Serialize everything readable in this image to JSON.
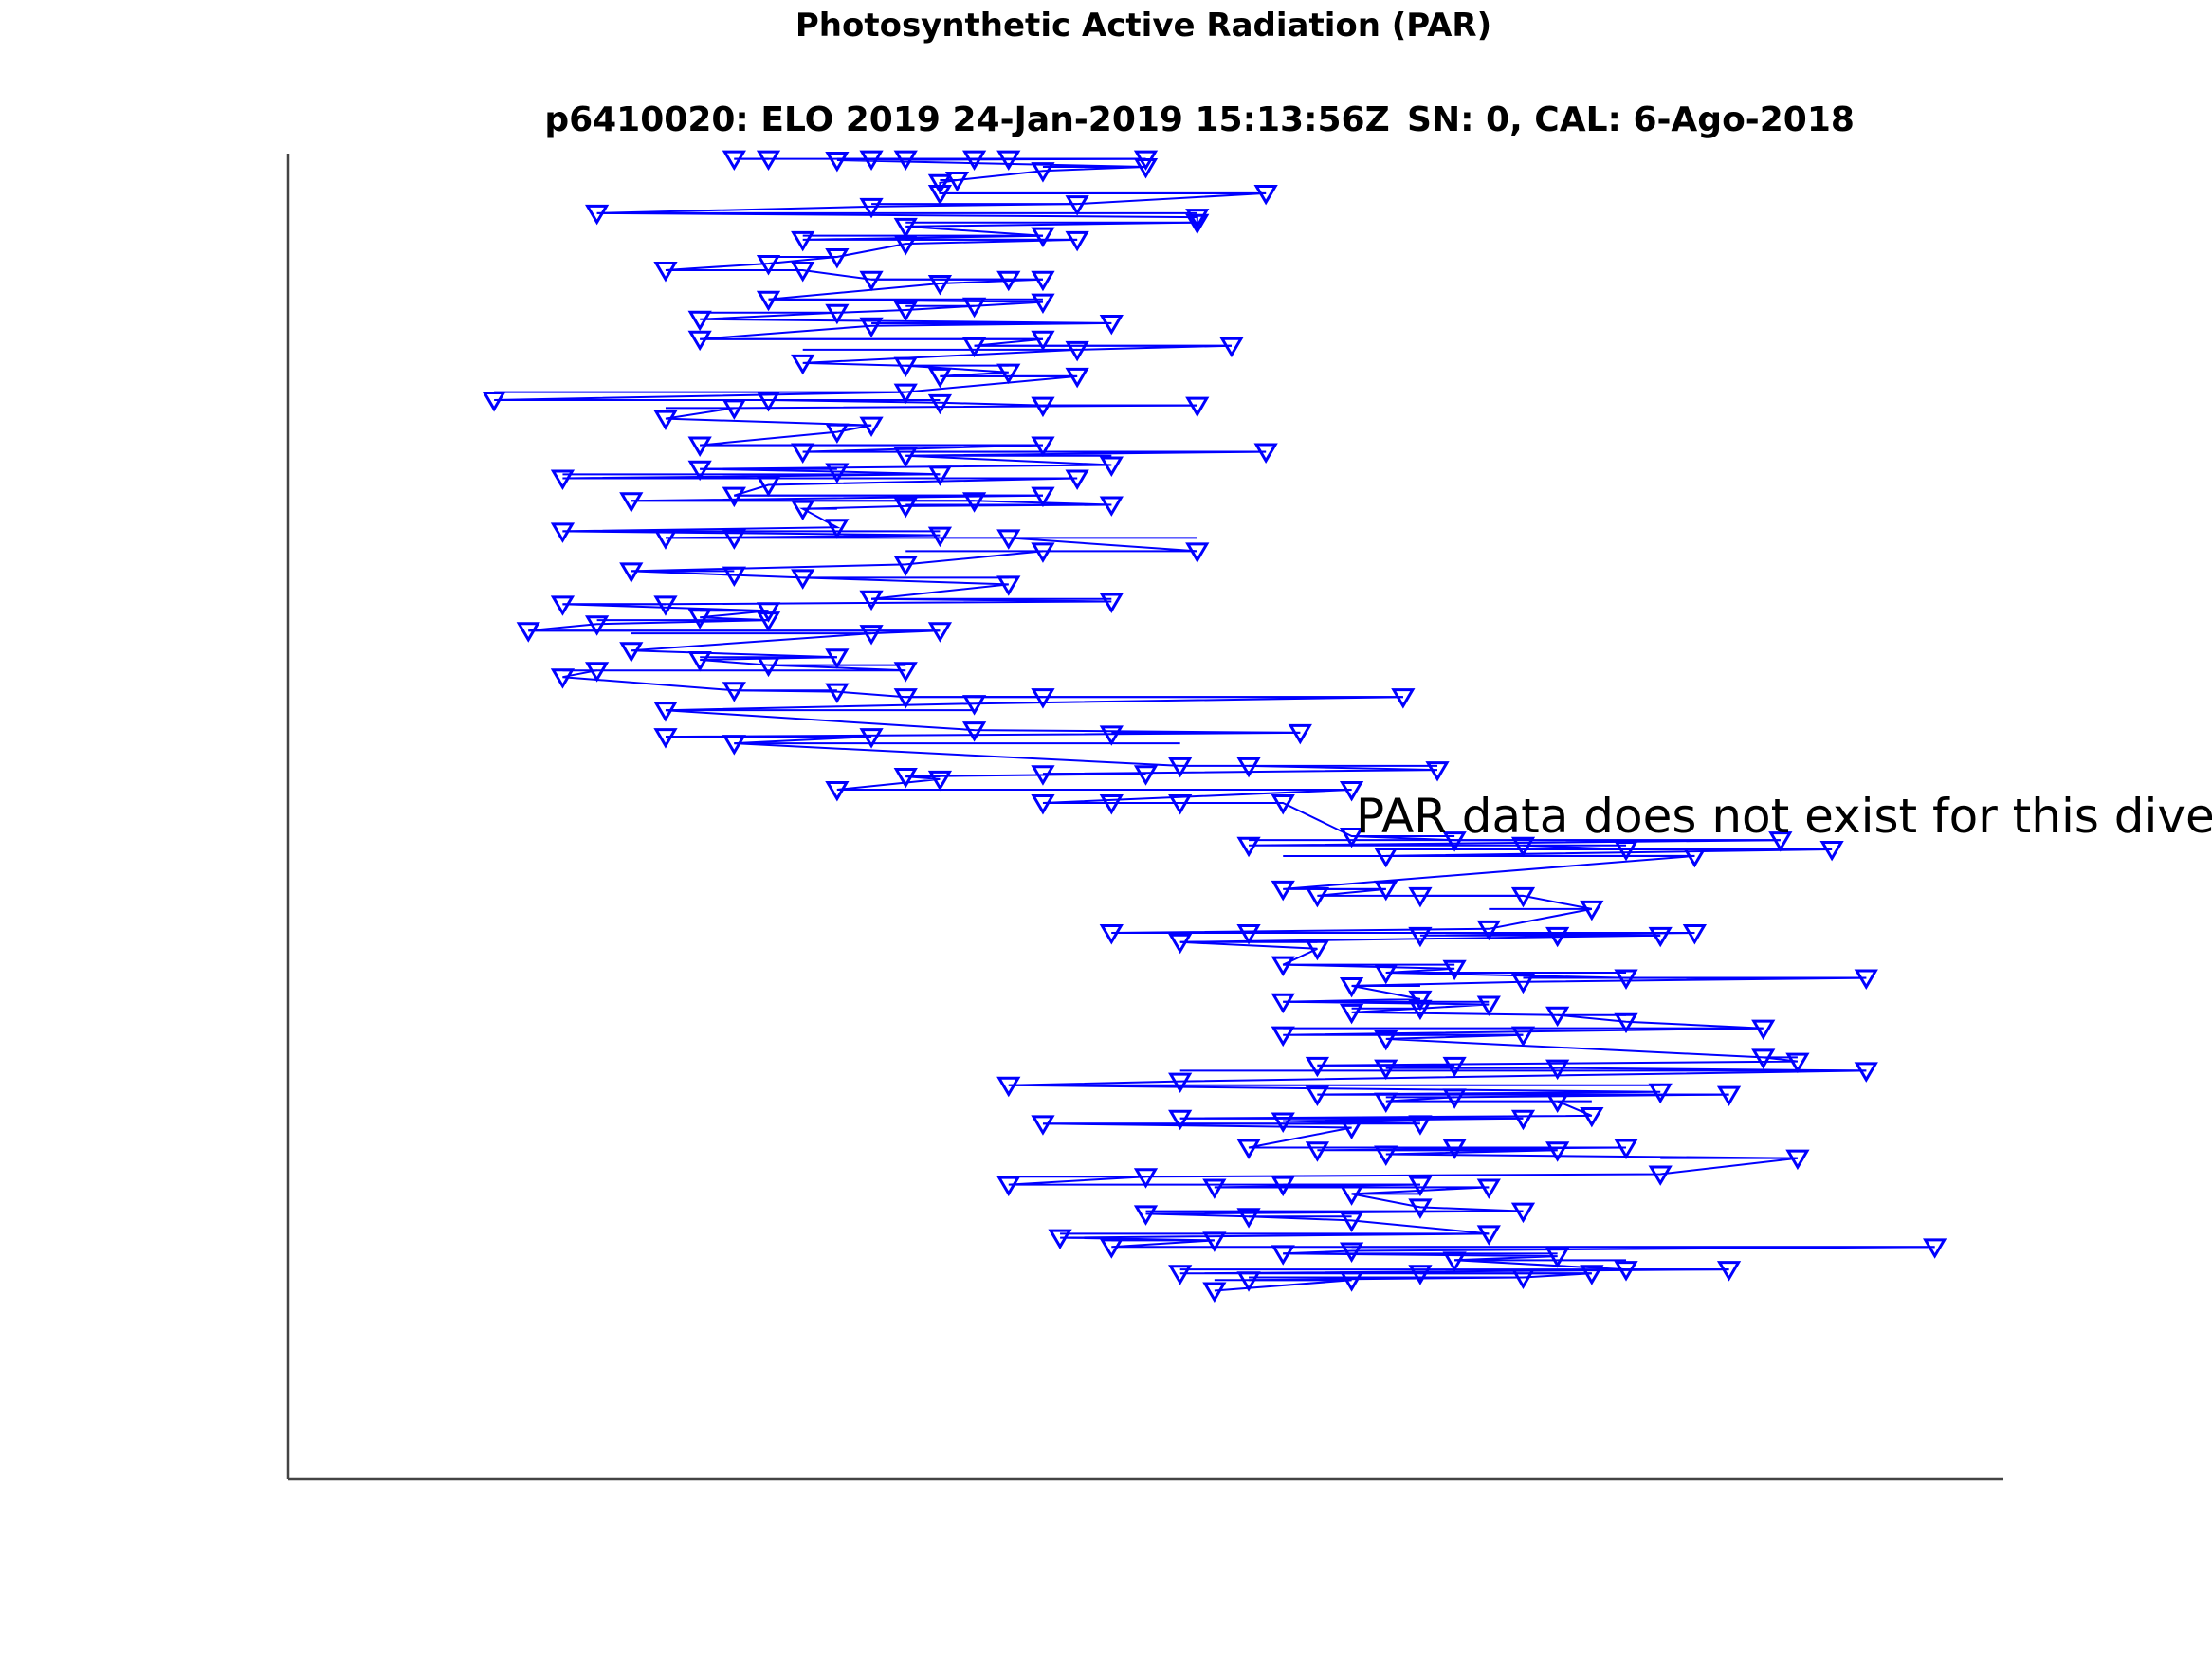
{
  "chart_data": {
    "type": "scatter",
    "title": "Photosynthetic Active Radiation (PAR)",
    "subtitle_left": "p6410020: ELO 2019 24-Jan-2019 15:13:56Z",
    "subtitle_right": "SN: 0, CAL: 6-Ago-2018",
    "annotation": "PAR data does not exist for this dive",
    "xlabel": "",
    "ylabel": "",
    "x_axis_ticks_shown": false,
    "y_axis_ticks_shown": false,
    "xlim": [
      0,
      1
    ],
    "ylim": [
      1,
      0
    ],
    "grid": false,
    "marker": "down-triangle-open",
    "series": [
      {
        "color": "#0000ff",
        "note_points": "x is horizontal fraction of plot width, y is depth fraction of plot height (0 = top)",
        "upper_points": [
          [
            0.26,
            0.004
          ],
          [
            0.28,
            0.004
          ],
          [
            0.32,
            0.005
          ],
          [
            0.34,
            0.004
          ],
          [
            0.36,
            0.004
          ],
          [
            0.4,
            0.004
          ],
          [
            0.42,
            0.004
          ],
          [
            0.5,
            0.004
          ],
          [
            0.5,
            0.01
          ],
          [
            0.44,
            0.013
          ],
          [
            0.38,
            0.022
          ],
          [
            0.39,
            0.02
          ],
          [
            0.38,
            0.03
          ],
          [
            0.57,
            0.03
          ],
          [
            0.18,
            0.045
          ],
          [
            0.34,
            0.04
          ],
          [
            0.46,
            0.038
          ],
          [
            0.53,
            0.048
          ],
          [
            0.53,
            0.052
          ],
          [
            0.36,
            0.055
          ],
          [
            0.3,
            0.065
          ],
          [
            0.36,
            0.068
          ],
          [
            0.44,
            0.062
          ],
          [
            0.46,
            0.065
          ],
          [
            0.22,
            0.088
          ],
          [
            0.28,
            0.083
          ],
          [
            0.32,
            0.078
          ],
          [
            0.3,
            0.088
          ],
          [
            0.34,
            0.095
          ],
          [
            0.38,
            0.098
          ],
          [
            0.42,
            0.095
          ],
          [
            0.44,
            0.095
          ],
          [
            0.28,
            0.11
          ],
          [
            0.32,
            0.12
          ],
          [
            0.36,
            0.118
          ],
          [
            0.4,
            0.115
          ],
          [
            0.44,
            0.112
          ],
          [
            0.24,
            0.125
          ],
          [
            0.34,
            0.13
          ],
          [
            0.48,
            0.128
          ],
          [
            0.24,
            0.14
          ],
          [
            0.4,
            0.145
          ],
          [
            0.44,
            0.14
          ],
          [
            0.55,
            0.145
          ],
          [
            0.46,
            0.148
          ],
          [
            0.3,
            0.158
          ],
          [
            0.36,
            0.16
          ],
          [
            0.42,
            0.165
          ],
          [
            0.38,
            0.168
          ],
          [
            0.46,
            0.168
          ],
          [
            0.12,
            0.186
          ],
          [
            0.26,
            0.192
          ],
          [
            0.28,
            0.186
          ],
          [
            0.36,
            0.18
          ],
          [
            0.38,
            0.188
          ],
          [
            0.44,
            0.19
          ],
          [
            0.53,
            0.19
          ],
          [
            0.22,
            0.2
          ],
          [
            0.32,
            0.21
          ],
          [
            0.34,
            0.205
          ],
          [
            0.24,
            0.22
          ],
          [
            0.3,
            0.225
          ],
          [
            0.36,
            0.228
          ],
          [
            0.44,
            0.22
          ],
          [
            0.48,
            0.235
          ],
          [
            0.57,
            0.225
          ],
          [
            0.16,
            0.245
          ],
          [
            0.24,
            0.238
          ],
          [
            0.28,
            0.25
          ],
          [
            0.32,
            0.24
          ],
          [
            0.38,
            0.242
          ],
          [
            0.46,
            0.245
          ],
          [
            0.2,
            0.262
          ],
          [
            0.26,
            0.258
          ],
          [
            0.3,
            0.268
          ],
          [
            0.36,
            0.266
          ],
          [
            0.4,
            0.262
          ],
          [
            0.44,
            0.258
          ],
          [
            0.48,
            0.265
          ],
          [
            0.16,
            0.285
          ],
          [
            0.22,
            0.29
          ],
          [
            0.26,
            0.29
          ],
          [
            0.32,
            0.282
          ],
          [
            0.38,
            0.288
          ],
          [
            0.42,
            0.29
          ],
          [
            0.53,
            0.3
          ],
          [
            0.2,
            0.315
          ],
          [
            0.26,
            0.318
          ],
          [
            0.3,
            0.32
          ],
          [
            0.36,
            0.31
          ],
          [
            0.42,
            0.325
          ],
          [
            0.44,
            0.3
          ],
          [
            0.22,
            0.34
          ],
          [
            0.28,
            0.345
          ],
          [
            0.34,
            0.336
          ],
          [
            0.48,
            0.338
          ],
          [
            0.16,
            0.34
          ],
          [
            0.14,
            0.36
          ],
          [
            0.18,
            0.355
          ],
          [
            0.24,
            0.35
          ],
          [
            0.28,
            0.352
          ],
          [
            0.34,
            0.362
          ],
          [
            0.38,
            0.36
          ],
          [
            0.2,
            0.375
          ],
          [
            0.24,
            0.382
          ],
          [
            0.28,
            0.386
          ],
          [
            0.32,
            0.38
          ],
          [
            0.36,
            0.39
          ],
          [
            0.16,
            0.395
          ],
          [
            0.18,
            0.39
          ],
          [
            0.22,
            0.42
          ],
          [
            0.26,
            0.405
          ],
          [
            0.32,
            0.406
          ],
          [
            0.36,
            0.41
          ],
          [
            0.4,
            0.415
          ],
          [
            0.44,
            0.41
          ],
          [
            0.65,
            0.41
          ],
          [
            0.22,
            0.44
          ],
          [
            0.26,
            0.445
          ],
          [
            0.34,
            0.44
          ],
          [
            0.4,
            0.435
          ],
          [
            0.48,
            0.438
          ],
          [
            0.59,
            0.437
          ],
          [
            0.32,
            0.48
          ],
          [
            0.36,
            0.47
          ],
          [
            0.38,
            0.472
          ],
          [
            0.44,
            0.468
          ],
          [
            0.5,
            0.468
          ],
          [
            0.52,
            0.462
          ],
          [
            0.56,
            0.462
          ],
          [
            0.67,
            0.465
          ],
          [
            0.44,
            0.49
          ],
          [
            0.48,
            0.49
          ],
          [
            0.52,
            0.49
          ],
          [
            0.58,
            0.49
          ],
          [
            0.62,
            0.48
          ]
        ],
        "lower_points": [
          [
            0.56,
            0.522
          ],
          [
            0.62,
            0.515
          ],
          [
            0.64,
            0.53
          ],
          [
            0.68,
            0.518
          ],
          [
            0.72,
            0.522
          ],
          [
            0.78,
            0.525
          ],
          [
            0.82,
            0.53
          ],
          [
            0.87,
            0.518
          ],
          [
            0.9,
            0.525
          ],
          [
            0.58,
            0.555
          ],
          [
            0.6,
            0.56
          ],
          [
            0.64,
            0.555
          ],
          [
            0.66,
            0.56
          ],
          [
            0.72,
            0.56
          ],
          [
            0.76,
            0.57
          ],
          [
            0.48,
            0.588
          ],
          [
            0.52,
            0.595
          ],
          [
            0.56,
            0.588
          ],
          [
            0.6,
            0.6
          ],
          [
            0.66,
            0.59
          ],
          [
            0.7,
            0.585
          ],
          [
            0.74,
            0.59
          ],
          [
            0.8,
            0.59
          ],
          [
            0.82,
            0.588
          ],
          [
            0.58,
            0.612
          ],
          [
            0.64,
            0.618
          ],
          [
            0.68,
            0.615
          ],
          [
            0.72,
            0.625
          ],
          [
            0.78,
            0.622
          ],
          [
            0.92,
            0.622
          ],
          [
            0.58,
            0.64
          ],
          [
            0.62,
            0.648
          ],
          [
            0.66,
            0.645
          ],
          [
            0.7,
            0.642
          ],
          [
            0.74,
            0.65
          ],
          [
            0.78,
            0.655
          ],
          [
            0.58,
            0.665
          ],
          [
            0.64,
            0.668
          ],
          [
            0.72,
            0.665
          ],
          [
            0.86,
            0.66
          ],
          [
            0.6,
            0.688
          ],
          [
            0.64,
            0.69
          ],
          [
            0.68,
            0.688
          ],
          [
            0.74,
            0.69
          ],
          [
            0.86,
            0.682
          ],
          [
            0.88,
            0.685
          ],
          [
            0.42,
            0.703
          ],
          [
            0.52,
            0.7
          ],
          [
            0.6,
            0.71
          ],
          [
            0.64,
            0.715
          ],
          [
            0.68,
            0.712
          ],
          [
            0.74,
            0.715
          ],
          [
            0.8,
            0.708
          ],
          [
            0.84,
            0.71
          ],
          [
            0.52,
            0.728
          ],
          [
            0.58,
            0.73
          ],
          [
            0.62,
            0.735
          ],
          [
            0.66,
            0.732
          ],
          [
            0.72,
            0.728
          ],
          [
            0.76,
            0.726
          ],
          [
            0.56,
            0.75
          ],
          [
            0.6,
            0.752
          ],
          [
            0.64,
            0.755
          ],
          [
            0.68,
            0.75
          ],
          [
            0.74,
            0.752
          ],
          [
            0.78,
            0.75
          ],
          [
            0.42,
            0.778
          ],
          [
            0.5,
            0.772
          ],
          [
            0.54,
            0.78
          ],
          [
            0.58,
            0.778
          ],
          [
            0.62,
            0.785
          ],
          [
            0.66,
            0.778
          ],
          [
            0.7,
            0.78
          ],
          [
            0.8,
            0.77
          ],
          [
            0.5,
            0.8
          ],
          [
            0.56,
            0.802
          ],
          [
            0.62,
            0.805
          ],
          [
            0.66,
            0.795
          ],
          [
            0.72,
            0.798
          ],
          [
            0.45,
            0.818
          ],
          [
            0.48,
            0.825
          ],
          [
            0.54,
            0.82
          ],
          [
            0.58,
            0.83
          ],
          [
            0.62,
            0.828
          ],
          [
            0.68,
            0.835
          ],
          [
            0.74,
            0.832
          ],
          [
            0.52,
            0.845
          ],
          [
            0.56,
            0.85
          ],
          [
            0.62,
            0.85
          ],
          [
            0.66,
            0.845
          ],
          [
            0.72,
            0.848
          ],
          [
            0.76,
            0.845
          ],
          [
            0.78,
            0.842
          ],
          [
            0.84,
            0.842
          ],
          [
            0.96,
            0.825
          ],
          [
            0.92,
            0.692
          ],
          [
            0.88,
            0.758
          ],
          [
            0.62,
            0.628
          ],
          [
            0.66,
            0.638
          ],
          [
            0.44,
            0.732
          ],
          [
            0.7,
            0.815
          ],
          [
            0.54,
            0.858
          ]
        ]
      }
    ]
  }
}
